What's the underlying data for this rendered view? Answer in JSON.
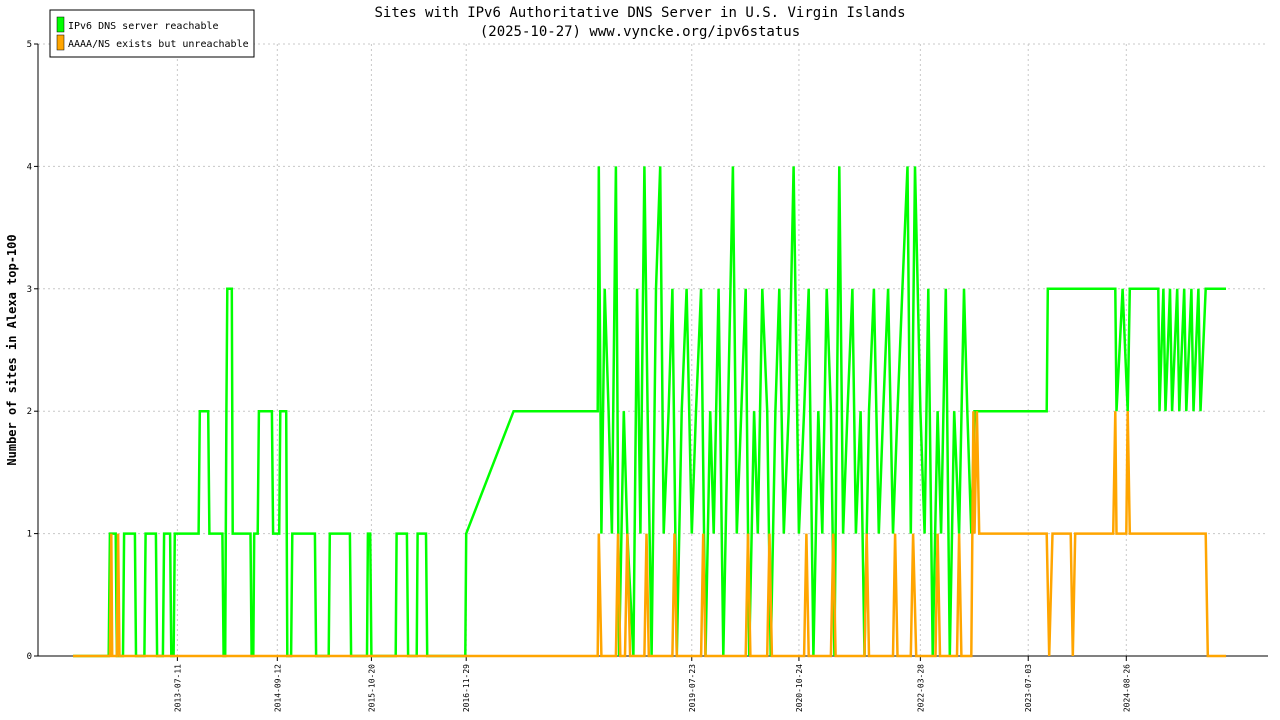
{
  "chart_data": {
    "type": "line",
    "title": "Sites with IPv6 Authoritative DNS Server in U.S. Virgin Islands",
    "subtitle": "(2025-10-27) www.vyncke.org/ipv6status",
    "ylabel": "Number of sites in Alexa top-100",
    "ylim": [
      0,
      5
    ],
    "yticks": [
      0,
      1,
      2,
      3,
      4,
      5
    ],
    "xlim": [
      "2012-04-20",
      "2025-10-27"
    ],
    "xticks": [
      "2013-07-11",
      "2014-09-12",
      "2015-10-20",
      "2016-11-29",
      "2019-07-23",
      "2020-10-24",
      "2022-03-28",
      "2023-07-03",
      "2024-08-26"
    ],
    "grid": true,
    "legend_position": "top-left",
    "series": [
      {
        "name": "IPv6 DNS server reachable",
        "color": "#00ff00",
        "points": [
          [
            "2012-04-20",
            0
          ],
          [
            "2012-09-20",
            0
          ],
          [
            "2012-09-25",
            1
          ],
          [
            "2012-10-20",
            1
          ],
          [
            "2012-10-25",
            0
          ],
          [
            "2012-11-20",
            0
          ],
          [
            "2012-11-25",
            1
          ],
          [
            "2013-01-10",
            1
          ],
          [
            "2013-01-15",
            0
          ],
          [
            "2013-02-20",
            0
          ],
          [
            "2013-02-25",
            1
          ],
          [
            "2013-04-10",
            1
          ],
          [
            "2013-04-15",
            0
          ],
          [
            "2013-05-10",
            0
          ],
          [
            "2013-05-15",
            1
          ],
          [
            "2013-06-10",
            1
          ],
          [
            "2013-06-15",
            0
          ],
          [
            "2013-06-25",
            0
          ],
          [
            "2013-06-30",
            1
          ],
          [
            "2013-10-10",
            1
          ],
          [
            "2013-10-15",
            2
          ],
          [
            "2013-11-20",
            2
          ],
          [
            "2013-11-25",
            1
          ],
          [
            "2014-01-20",
            1
          ],
          [
            "2014-01-25",
            0
          ],
          [
            "2014-02-01",
            0
          ],
          [
            "2014-02-06",
            2
          ],
          [
            "2014-02-10",
            3
          ],
          [
            "2014-03-01",
            3
          ],
          [
            "2014-03-05",
            1
          ],
          [
            "2014-05-20",
            1
          ],
          [
            "2014-05-25",
            0
          ],
          [
            "2014-06-01",
            0
          ],
          [
            "2014-06-05",
            1
          ],
          [
            "2014-06-20",
            1
          ],
          [
            "2014-06-25",
            2
          ],
          [
            "2014-08-20",
            2
          ],
          [
            "2014-08-25",
            1
          ],
          [
            "2014-09-20",
            1
          ],
          [
            "2014-09-25",
            2
          ],
          [
            "2014-10-20",
            2
          ],
          [
            "2014-10-25",
            0
          ],
          [
            "2014-11-10",
            0
          ],
          [
            "2014-11-15",
            1
          ],
          [
            "2015-02-20",
            1
          ],
          [
            "2015-02-25",
            0
          ],
          [
            "2015-04-20",
            0
          ],
          [
            "2015-04-25",
            1
          ],
          [
            "2015-07-20",
            1
          ],
          [
            "2015-07-25",
            0
          ],
          [
            "2015-10-01",
            0
          ],
          [
            "2015-10-05",
            1
          ],
          [
            "2015-10-15",
            1
          ],
          [
            "2015-10-20",
            0
          ],
          [
            "2016-02-01",
            0
          ],
          [
            "2016-02-05",
            1
          ],
          [
            "2016-03-20",
            1
          ],
          [
            "2016-03-25",
            0
          ],
          [
            "2016-05-01",
            0
          ],
          [
            "2016-05-05",
            1
          ],
          [
            "2016-06-10",
            1
          ],
          [
            "2016-06-15",
            0
          ],
          [
            "2016-11-25",
            0
          ],
          [
            "2016-11-29",
            1
          ],
          [
            "2017-06-20",
            2
          ],
          [
            "2018-06-15",
            2
          ],
          [
            "2018-06-20",
            4
          ],
          [
            "2018-07-01",
            1
          ],
          [
            "2018-07-15",
            3
          ],
          [
            "2018-08-01",
            2
          ],
          [
            "2018-08-15",
            1
          ],
          [
            "2018-09-01",
            4
          ],
          [
            "2018-09-15",
            0
          ],
          [
            "2018-10-05",
            2
          ],
          [
            "2018-10-20",
            1
          ],
          [
            "2018-11-15",
            0
          ],
          [
            "2018-12-01",
            3
          ],
          [
            "2018-12-15",
            1
          ],
          [
            "2019-01-01",
            4
          ],
          [
            "2019-01-15",
            2
          ],
          [
            "2019-02-01",
            0
          ],
          [
            "2019-02-20",
            3
          ],
          [
            "2019-03-10",
            4
          ],
          [
            "2019-03-25",
            1
          ],
          [
            "2019-04-15",
            2
          ],
          [
            "2019-05-01",
            3
          ],
          [
            "2019-05-20",
            0
          ],
          [
            "2019-06-10",
            2
          ],
          [
            "2019-07-01",
            3
          ],
          [
            "2019-07-23",
            1
          ],
          [
            "2019-08-10",
            2
          ],
          [
            "2019-09-01",
            3
          ],
          [
            "2019-09-20",
            0
          ],
          [
            "2019-10-10",
            2
          ],
          [
            "2019-10-25",
            1
          ],
          [
            "2019-11-15",
            3
          ],
          [
            "2019-12-05",
            0
          ],
          [
            "2019-12-25",
            2
          ],
          [
            "2020-01-15",
            4
          ],
          [
            "2020-02-01",
            1
          ],
          [
            "2020-02-20",
            2
          ],
          [
            "2020-03-10",
            3
          ],
          [
            "2020-03-25",
            0
          ],
          [
            "2020-04-15",
            2
          ],
          [
            "2020-05-01",
            1
          ],
          [
            "2020-05-20",
            3
          ],
          [
            "2020-06-10",
            2
          ],
          [
            "2020-06-25",
            0
          ],
          [
            "2020-07-15",
            2
          ],
          [
            "2020-08-01",
            3
          ],
          [
            "2020-08-20",
            1
          ],
          [
            "2020-09-10",
            2
          ],
          [
            "2020-10-01",
            4
          ],
          [
            "2020-10-24",
            1
          ],
          [
            "2020-11-15",
            2
          ],
          [
            "2020-12-05",
            3
          ],
          [
            "2020-12-25",
            0
          ],
          [
            "2021-01-15",
            2
          ],
          [
            "2021-02-01",
            1
          ],
          [
            "2021-02-20",
            3
          ],
          [
            "2021-03-10",
            2
          ],
          [
            "2021-03-25",
            0
          ],
          [
            "2021-04-15",
            4
          ],
          [
            "2021-05-01",
            1
          ],
          [
            "2021-05-20",
            2
          ],
          [
            "2021-06-10",
            3
          ],
          [
            "2021-06-25",
            1
          ],
          [
            "2021-07-15",
            2
          ],
          [
            "2021-08-01",
            0
          ],
          [
            "2021-08-20",
            2
          ],
          [
            "2021-09-10",
            3
          ],
          [
            "2021-10-01",
            1
          ],
          [
            "2021-10-20",
            2
          ],
          [
            "2021-11-10",
            3
          ],
          [
            "2021-12-01",
            1
          ],
          [
            "2021-12-20",
            2
          ],
          [
            "2022-01-10",
            3
          ],
          [
            "2022-02-01",
            4
          ],
          [
            "2022-02-15",
            1
          ],
          [
            "2022-03-05",
            4
          ],
          [
            "2022-03-28",
            2
          ],
          [
            "2022-04-15",
            1
          ],
          [
            "2022-05-01",
            3
          ],
          [
            "2022-05-20",
            0
          ],
          [
            "2022-06-10",
            2
          ],
          [
            "2022-06-25",
            1
          ],
          [
            "2022-07-15",
            3
          ],
          [
            "2022-08-01",
            0
          ],
          [
            "2022-08-20",
            2
          ],
          [
            "2022-09-10",
            1
          ],
          [
            "2022-10-01",
            3
          ],
          [
            "2022-10-15",
            2
          ],
          [
            "2022-11-01",
            1
          ],
          [
            "2022-11-15",
            2
          ],
          [
            "2023-02-20",
            2
          ],
          [
            "2023-03-01",
            2
          ],
          [
            "2023-05-01",
            2
          ],
          [
            "2023-07-03",
            2
          ],
          [
            "2023-09-20",
            2
          ],
          [
            "2023-09-25",
            3
          ],
          [
            "2024-07-10",
            3
          ],
          [
            "2024-07-15",
            2
          ],
          [
            "2024-08-10",
            3
          ],
          [
            "2024-09-01",
            2
          ],
          [
            "2024-09-10",
            3
          ],
          [
            "2025-01-10",
            3
          ],
          [
            "2025-01-15",
            2
          ],
          [
            "2025-02-01",
            3
          ],
          [
            "2025-02-10",
            2
          ],
          [
            "2025-03-01",
            3
          ],
          [
            "2025-03-10",
            2
          ],
          [
            "2025-04-01",
            3
          ],
          [
            "2025-04-10",
            2
          ],
          [
            "2025-05-01",
            3
          ],
          [
            "2025-05-10",
            2
          ],
          [
            "2025-06-01",
            3
          ],
          [
            "2025-06-10",
            2
          ],
          [
            "2025-07-01",
            3
          ],
          [
            "2025-07-10",
            2
          ],
          [
            "2025-08-01",
            3
          ],
          [
            "2025-10-27",
            3
          ]
        ]
      },
      {
        "name": "AAAA/NS exists but unreachable",
        "color": "#ffa500",
        "points": [
          [
            "2012-04-20",
            0
          ],
          [
            "2012-09-25",
            0
          ],
          [
            "2012-10-01",
            1
          ],
          [
            "2012-10-05",
            0
          ],
          [
            "2012-10-25",
            0
          ],
          [
            "2012-10-30",
            1
          ],
          [
            "2012-11-05",
            0
          ],
          [
            "2018-06-15",
            0
          ],
          [
            "2018-06-20",
            1
          ],
          [
            "2018-07-01",
            0
          ],
          [
            "2018-09-01",
            0
          ],
          [
            "2018-09-10",
            1
          ],
          [
            "2018-09-20",
            0
          ],
          [
            "2018-10-10",
            0
          ],
          [
            "2018-10-20",
            1
          ],
          [
            "2018-11-01",
            0
          ],
          [
            "2019-01-01",
            0
          ],
          [
            "2019-01-10",
            1
          ],
          [
            "2019-01-20",
            0
          ],
          [
            "2019-05-01",
            0
          ],
          [
            "2019-05-10",
            1
          ],
          [
            "2019-05-20",
            0
          ],
          [
            "2019-09-01",
            0
          ],
          [
            "2019-09-10",
            1
          ],
          [
            "2019-09-20",
            0
          ],
          [
            "2020-03-10",
            0
          ],
          [
            "2020-03-20",
            1
          ],
          [
            "2020-03-30",
            0
          ],
          [
            "2020-06-10",
            0
          ],
          [
            "2020-06-20",
            1
          ],
          [
            "2020-06-30",
            0
          ],
          [
            "2020-11-15",
            0
          ],
          [
            "2020-11-25",
            1
          ],
          [
            "2020-12-05",
            0
          ],
          [
            "2021-03-10",
            0
          ],
          [
            "2021-03-20",
            1
          ],
          [
            "2021-03-30",
            0
          ],
          [
            "2021-08-01",
            0
          ],
          [
            "2021-08-10",
            1
          ],
          [
            "2021-08-20",
            0
          ],
          [
            "2021-12-01",
            0
          ],
          [
            "2021-12-10",
            1
          ],
          [
            "2021-12-20",
            0
          ],
          [
            "2022-02-15",
            0
          ],
          [
            "2022-02-25",
            1
          ],
          [
            "2022-03-10",
            0
          ],
          [
            "2022-06-01",
            0
          ],
          [
            "2022-06-10",
            1
          ],
          [
            "2022-06-20",
            0
          ],
          [
            "2022-09-01",
            0
          ],
          [
            "2022-09-10",
            1
          ],
          [
            "2022-09-20",
            0
          ],
          [
            "2022-11-01",
            0
          ],
          [
            "2022-11-10",
            2
          ],
          [
            "2022-11-15",
            1
          ],
          [
            "2022-11-25",
            2
          ],
          [
            "2022-12-05",
            1
          ],
          [
            "2023-09-20",
            1
          ],
          [
            "2023-10-01",
            0
          ],
          [
            "2023-10-15",
            1
          ],
          [
            "2024-01-01",
            1
          ],
          [
            "2024-01-10",
            0
          ],
          [
            "2024-01-20",
            1
          ],
          [
            "2024-07-01",
            1
          ],
          [
            "2024-07-10",
            2
          ],
          [
            "2024-07-15",
            1
          ],
          [
            "2024-08-26",
            1
          ],
          [
            "2024-09-01",
            2
          ],
          [
            "2024-09-10",
            1
          ],
          [
            "2025-08-01",
            1
          ],
          [
            "2025-08-10",
            0
          ],
          [
            "2025-10-27",
            0
          ]
        ]
      }
    ]
  }
}
